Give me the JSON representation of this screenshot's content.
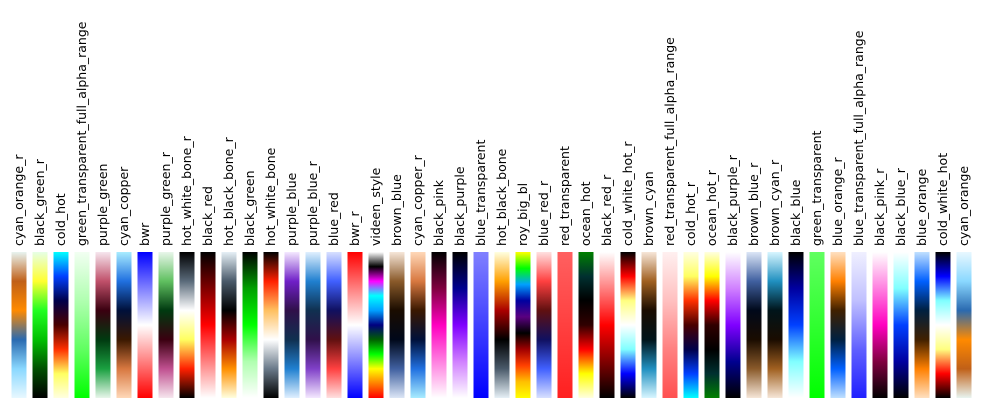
{
  "chart_data": {
    "type": "heatmap",
    "title": "",
    "orientation": "vertical colorbar strips, labels rotated 90 degrees",
    "colormaps": [
      {
        "name": "cyan_orange_r",
        "stops": [
          "#e8f4f0",
          "#c06018",
          "#ff8a00",
          "#2a6ab0",
          "#8ad8ff",
          "#e8f8ff"
        ]
      },
      {
        "name": "black_green_r",
        "stops": [
          "#e6ffe6",
          "#ffff30",
          "#22ff22",
          "#00c000",
          "#005000",
          "#000000"
        ]
      },
      {
        "name": "cold_hot",
        "stops": [
          "#00ffff",
          "#0040ff",
          "#00004a",
          "#4a0000",
          "#ff3000",
          "#ffff60",
          "#ffffe0"
        ]
      },
      {
        "name": "green_transparent_full_alpha_range",
        "stops": [
          "#f2fff2",
          "#b0ffb0",
          "#60ff60",
          "#00ff00"
        ]
      },
      {
        "name": "purple_green",
        "stops": [
          "#f6e6ee",
          "#c0506a",
          "#3a0010",
          "#003a10",
          "#1aa040",
          "#e8f6ea"
        ]
      },
      {
        "name": "cyan_copper",
        "stops": [
          "#a8ecff",
          "#2070e0",
          "#00103a",
          "#3a1800",
          "#d87840",
          "#ffd8b8"
        ]
      },
      {
        "name": "bwr",
        "stops": [
          "#0000ff",
          "#8080ff",
          "#ffffff",
          "#ff8080",
          "#ff0000"
        ]
      },
      {
        "name": "purple_green_r",
        "stops": [
          "#e8f6ea",
          "#60c060",
          "#003a10",
          "#3a0010",
          "#c05090",
          "#f6e6ee"
        ]
      },
      {
        "name": "hot_white_bone_r",
        "stops": [
          "#000000",
          "#5a6a7a",
          "#ffffff",
          "#ffff60",
          "#ff2000",
          "#000000"
        ]
      },
      {
        "name": "black_red",
        "stops": [
          "#000000",
          "#800000",
          "#ff0000",
          "#ff8080",
          "#ffffff"
        ]
      },
      {
        "name": "hot_black_bone_r",
        "stops": [
          "#e6f0f6",
          "#4a5a6a",
          "#000000",
          "#aa0000",
          "#ff9000",
          "#ffffe0"
        ]
      },
      {
        "name": "black_green",
        "stops": [
          "#000000",
          "#00a000",
          "#00ff00",
          "#b0ffb0",
          "#ffffff"
        ]
      },
      {
        "name": "hot_white_bone",
        "stops": [
          "#000000",
          "#ff2000",
          "#ffc060",
          "#ffffff",
          "#6a7a8a",
          "#000000"
        ]
      },
      {
        "name": "purple_blue",
        "stops": [
          "#f4e8ff",
          "#7020c8",
          "#30104a",
          "#103050",
          "#2080d0",
          "#e0f0ff"
        ]
      },
      {
        "name": "purple_blue_r",
        "stops": [
          "#e0f0ff",
          "#2080d0",
          "#103050",
          "#30104a",
          "#8040c8",
          "#f4e8ff"
        ]
      },
      {
        "name": "blue_red",
        "stops": [
          "#d8e0ff",
          "#4060ff",
          "#101060",
          "#601010",
          "#ff4040",
          "#ffe0e0"
        ]
      },
      {
        "name": "bwr_r",
        "stops": [
          "#ff0000",
          "#ff8080",
          "#ffffff",
          "#8080ff",
          "#0000ff"
        ]
      },
      {
        "name": "videen_style",
        "stops": [
          "#ffffff",
          "#000000",
          "#ff00ff",
          "#00ffff",
          "#00a0ff",
          "#000080",
          "#006000",
          "#00ff00",
          "#ffff00",
          "#ff8000",
          "#ff0000"
        ]
      },
      {
        "name": "brown_blue",
        "stops": [
          "#f6e6d8",
          "#8a5a2a",
          "#1a0c00",
          "#00081a",
          "#4060a0",
          "#dce6f6"
        ]
      },
      {
        "name": "cyan_copper_r",
        "stops": [
          "#ffd8b8",
          "#d87840",
          "#3a1800",
          "#00103a",
          "#2070e0",
          "#a8ecff"
        ]
      },
      {
        "name": "black_pink",
        "stops": [
          "#000000",
          "#800040",
          "#ff00c0",
          "#ff80e0",
          "#ffffff"
        ]
      },
      {
        "name": "black_purple",
        "stops": [
          "#000000",
          "#000090",
          "#8000ff",
          "#d080ff",
          "#ffffff"
        ]
      },
      {
        "name": "blue_transparent",
        "stops": [
          "#8080ff",
          "#4040ff",
          "#0000ff"
        ]
      },
      {
        "name": "hot_black_bone",
        "stops": [
          "#ffffe0",
          "#ffa000",
          "#aa0000",
          "#000000",
          "#4a5a6a",
          "#e6f0f6"
        ]
      },
      {
        "name": "roy_big_bl",
        "stops": [
          "#ffff00",
          "#00ff00",
          "#00a0ff",
          "#0000a0",
          "#5a0080",
          "#000000",
          "#a00000",
          "#ff4000",
          "#ffc000",
          "#ffff00"
        ]
      },
      {
        "name": "blue_red_r",
        "stops": [
          "#ffe0e0",
          "#ff4040",
          "#601010",
          "#101060",
          "#4060ff",
          "#d8e0ff"
        ]
      },
      {
        "name": "red_transparent",
        "stops": [
          "#ff6060",
          "#ff4040",
          "#ff2020"
        ]
      },
      {
        "name": "ocean_hot",
        "stops": [
          "#008000",
          "#003030",
          "#000000",
          "#300000",
          "#ff0000",
          "#ffff00",
          "#ffffe0"
        ]
      },
      {
        "name": "black_red_r",
        "stops": [
          "#ffffff",
          "#ff8080",
          "#ff0000",
          "#800000",
          "#000000"
        ]
      },
      {
        "name": "cold_white_hot_r",
        "stops": [
          "#000000",
          "#ff0000",
          "#ffff80",
          "#ffffff",
          "#80ffff",
          "#0000ff",
          "#000000"
        ]
      },
      {
        "name": "brown_cyan",
        "stops": [
          "#f6e6d8",
          "#a06020",
          "#1a0c00",
          "#00141a",
          "#2090c0",
          "#d8f6ff"
        ]
      },
      {
        "name": "red_transparent_full_alpha_range",
        "stops": [
          "#fff0f0",
          "#ffc0c0",
          "#ff8080",
          "#ff5050"
        ]
      },
      {
        "name": "cold_hot_r",
        "stops": [
          "#ffffe0",
          "#ffff60",
          "#ff3000",
          "#4a0000",
          "#00004a",
          "#0040ff",
          "#00ffff"
        ]
      },
      {
        "name": "ocean_hot_r",
        "stops": [
          "#ffffe0",
          "#ffff00",
          "#ff0000",
          "#300000",
          "#000000",
          "#003030",
          "#008000"
        ]
      },
      {
        "name": "black_purple_r",
        "stops": [
          "#ffffff",
          "#d080ff",
          "#8000ff",
          "#000090",
          "#000000"
        ]
      },
      {
        "name": "brown_blue_r",
        "stops": [
          "#dce6f6",
          "#4060a0",
          "#00081a",
          "#1a0c00",
          "#8a5a2a",
          "#f6e6d8"
        ]
      },
      {
        "name": "brown_cyan_r",
        "stops": [
          "#d8f6ff",
          "#2090c0",
          "#00141a",
          "#1a0c00",
          "#a06020",
          "#f6e6d8"
        ]
      },
      {
        "name": "black_blue",
        "stops": [
          "#000000",
          "#0000a0",
          "#0040ff",
          "#80ffff",
          "#ffffff"
        ]
      },
      {
        "name": "green_transparent",
        "stops": [
          "#60ff60",
          "#30ff30",
          "#00ff00"
        ]
      },
      {
        "name": "blue_orange_r",
        "stops": [
          "#ffe0c0",
          "#ff8000",
          "#402000",
          "#002040",
          "#0060ff",
          "#c0e0ff"
        ]
      },
      {
        "name": "blue_transparent_full_alpha_range",
        "stops": [
          "#f0f0ff",
          "#c0c0ff",
          "#6060ff",
          "#2020ff"
        ]
      },
      {
        "name": "black_pink_r",
        "stops": [
          "#ffffff",
          "#ff80e0",
          "#ff00c0",
          "#800040",
          "#000000"
        ]
      },
      {
        "name": "black_blue_r",
        "stops": [
          "#ffffff",
          "#80ffff",
          "#0040ff",
          "#0000a0",
          "#000000"
        ]
      },
      {
        "name": "blue_orange",
        "stops": [
          "#c0e0ff",
          "#0060ff",
          "#002040",
          "#402000",
          "#ff8000",
          "#ffe0c0"
        ]
      },
      {
        "name": "cold_white_hot",
        "stops": [
          "#000000",
          "#0000ff",
          "#80ffff",
          "#ffffff",
          "#ffff80",
          "#ff0000",
          "#000000"
        ]
      },
      {
        "name": "cyan_orange",
        "stops": [
          "#e8f8ff",
          "#8ad8ff",
          "#2a6ab0",
          "#ff8a00",
          "#c06018",
          "#e8f4f0"
        ]
      }
    ]
  }
}
